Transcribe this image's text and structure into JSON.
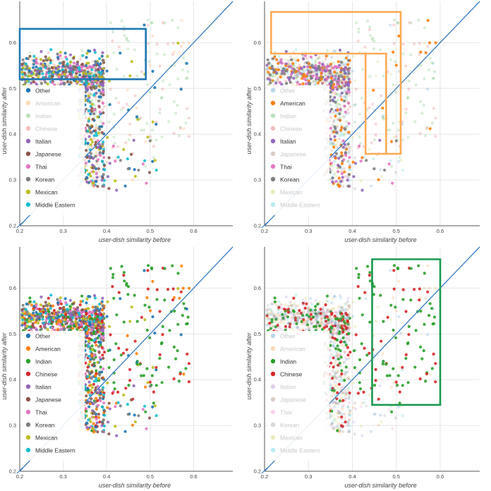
{
  "chart_data": [
    {
      "type": "scatter",
      "xlabel": "user-dish similarity before",
      "ylabel": "user-dish similarity after",
      "xlim": [
        0.2,
        0.69
      ],
      "ylim": [
        0.2,
        0.69
      ],
      "xticks": [
        "0.2",
        "0.3",
        "0.4",
        "0.5",
        "0.6"
      ],
      "yticks": [
        "0.2",
        "0.3",
        "0.4",
        "0.5",
        "0.6"
      ],
      "grid": true,
      "legend_position": "bottom-left",
      "reference_line": "y = x",
      "legend": [
        {
          "label": "Other",
          "color": "#1f77b4",
          "faded": false
        },
        {
          "label": "American",
          "color": "#ff7f0e",
          "faded": true
        },
        {
          "label": "Indian",
          "color": "#2ca02c",
          "faded": true
        },
        {
          "label": "Chinese",
          "color": "#d62728",
          "faded": true
        },
        {
          "label": "Italian",
          "color": "#9467bd",
          "faded": false
        },
        {
          "label": "Japanese",
          "color": "#8c564b",
          "faded": false
        },
        {
          "label": "Thai",
          "color": "#e377c2",
          "faded": false
        },
        {
          "label": "Korean",
          "color": "#7f7f7f",
          "faded": false
        },
        {
          "label": "Mexican",
          "color": "#bcbd22",
          "faded": false
        },
        {
          "label": "Middle Eastern",
          "color": "#17becf",
          "faded": false
        }
      ],
      "highlight_boxes": [
        {
          "color": "#1f77b4",
          "polygon": [
            [
              0.2,
              0.52
            ],
            [
              0.49,
              0.52
            ],
            [
              0.49,
              0.63
            ],
            [
              0.2,
              0.63
            ]
          ]
        }
      ]
    },
    {
      "type": "scatter",
      "xlabel": "user-dish similarity before",
      "ylabel": "user-dish similarity after",
      "xlim": [
        0.2,
        0.69
      ],
      "ylim": [
        0.2,
        0.69
      ],
      "xticks": [
        "0.2",
        "0.3",
        "0.4",
        "0.5",
        "0.6"
      ],
      "yticks": [
        "0.2",
        "0.3",
        "0.4",
        "0.5",
        "0.6"
      ],
      "grid": true,
      "legend_position": "bottom-left",
      "reference_line": "y = x",
      "legend": [
        {
          "label": "Other",
          "color": "#1f77b4",
          "faded": true
        },
        {
          "label": "American",
          "color": "#ff7f0e",
          "faded": false
        },
        {
          "label": "Indian",
          "color": "#2ca02c",
          "faded": true
        },
        {
          "label": "Chinese",
          "color": "#d62728",
          "faded": true
        },
        {
          "label": "Italian",
          "color": "#9467bd",
          "faded": false
        },
        {
          "label": "Japanese",
          "color": "#8c564b",
          "faded": true
        },
        {
          "label": "Thai",
          "color": "#e377c2",
          "faded": false
        },
        {
          "label": "Korean",
          "color": "#7f7f7f",
          "faded": false
        },
        {
          "label": "Mexican",
          "color": "#bcbd22",
          "faded": true
        },
        {
          "label": "Middle Eastern",
          "color": "#17becf",
          "faded": true
        }
      ],
      "highlight_boxes": [
        {
          "color": "#ffaa55",
          "polygon": [
            [
              0.215,
              0.667
            ],
            [
              0.51,
              0.667
            ],
            [
              0.51,
              0.357
            ],
            [
              0.477,
              0.357
            ],
            [
              0.477,
              0.576
            ],
            [
              0.215,
              0.576
            ]
          ]
        },
        {
          "color": "#ffaa55",
          "polygon": [
            [
              0.43,
              0.576
            ],
            [
              0.43,
              0.357
            ],
            [
              0.477,
              0.357
            ]
          ]
        }
      ]
    },
    {
      "type": "scatter",
      "xlabel": "user-dish similarity before",
      "ylabel": "user-dish similarity after",
      "xlim": [
        0.2,
        0.69
      ],
      "ylim": [
        0.2,
        0.69
      ],
      "xticks": [
        "0.2",
        "0.3",
        "0.4",
        "0.5",
        "0.6"
      ],
      "yticks": [
        "0.2",
        "0.3",
        "0.4",
        "0.5",
        "0.6"
      ],
      "grid": true,
      "legend_position": "bottom-left",
      "reference_line": "y = x",
      "legend": [
        {
          "label": "Other",
          "color": "#1f77b4",
          "faded": false
        },
        {
          "label": "American",
          "color": "#ff7f0e",
          "faded": false
        },
        {
          "label": "Indian",
          "color": "#2ca02c",
          "faded": false
        },
        {
          "label": "Chinese",
          "color": "#d62728",
          "faded": false
        },
        {
          "label": "Italian",
          "color": "#9467bd",
          "faded": false
        },
        {
          "label": "Japanese",
          "color": "#8c564b",
          "faded": false
        },
        {
          "label": "Thai",
          "color": "#e377c2",
          "faded": false
        },
        {
          "label": "Korean",
          "color": "#7f7f7f",
          "faded": false
        },
        {
          "label": "Mexican",
          "color": "#bcbd22",
          "faded": false
        },
        {
          "label": "Middle Eastern",
          "color": "#17becf",
          "faded": false
        }
      ],
      "highlight_boxes": []
    },
    {
      "type": "scatter",
      "xlabel": "user-dish similarity before",
      "ylabel": "user-dish similarity after",
      "xlim": [
        0.2,
        0.69
      ],
      "ylim": [
        0.2,
        0.69
      ],
      "xticks": [
        "0.2",
        "0.3",
        "0.4",
        "0.5",
        "0.6"
      ],
      "yticks": [
        "0.2",
        "0.3",
        "0.4",
        "0.5",
        "0.6"
      ],
      "grid": true,
      "legend_position": "bottom-left",
      "reference_line": "y = x",
      "legend": [
        {
          "label": "Other",
          "color": "#1f77b4",
          "faded": true
        },
        {
          "label": "American",
          "color": "#ff7f0e",
          "faded": true
        },
        {
          "label": "Indian",
          "color": "#2ca02c",
          "faded": false
        },
        {
          "label": "Chinese",
          "color": "#d62728",
          "faded": false
        },
        {
          "label": "Italian",
          "color": "#9467bd",
          "faded": true
        },
        {
          "label": "Japanese",
          "color": "#8c564b",
          "faded": true
        },
        {
          "label": "Thai",
          "color": "#e377c2",
          "faded": true
        },
        {
          "label": "Korean",
          "color": "#7f7f7f",
          "faded": true
        },
        {
          "label": "Mexican",
          "color": "#bcbd22",
          "faded": true
        },
        {
          "label": "Middle Eastern",
          "color": "#17becf",
          "faded": true
        }
      ],
      "highlight_boxes": [
        {
          "color": "#1a9850",
          "polygon": [
            [
              0.445,
              0.663
            ],
            [
              0.6,
              0.663
            ],
            [
              0.6,
              0.345
            ],
            [
              0.445,
              0.345
            ]
          ]
        }
      ]
    }
  ]
}
